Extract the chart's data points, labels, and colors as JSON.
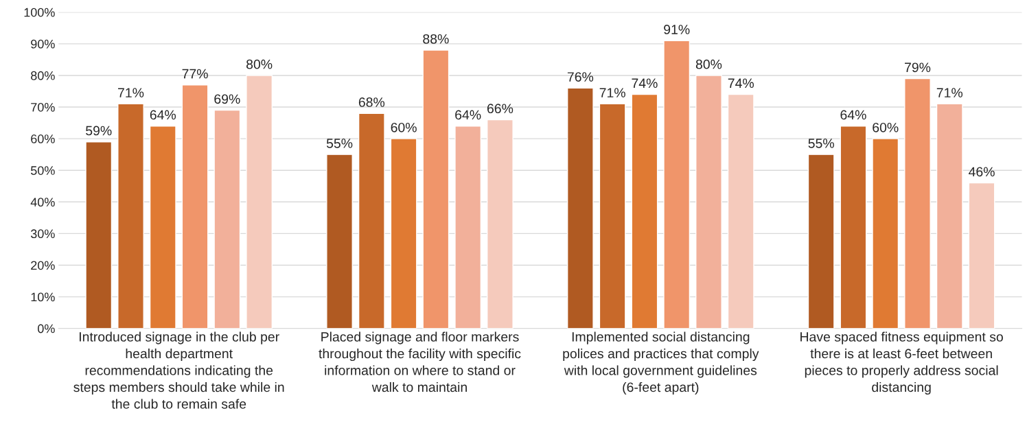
{
  "chart_data": {
    "type": "bar",
    "categories": [
      "Introduced signage in the club per\nhealth department\nrecommendations indicating the\nsteps members should take while in\nthe club to remain safe",
      "Placed signage and floor markers\nthroughout the facility with specific\ninformation on where to stand or\nwalk to maintain",
      "Implemented social distancing\npolices and practices that comply\nwith local government guidelines\n(6-feet apart)",
      "Have spaced fitness equipment so\nthere is at least 6-feet between\npieces to properly address social\ndistancing"
    ],
    "series": [
      {
        "color": "#b05a22",
        "values": [
          59,
          55,
          76,
          55
        ],
        "value_labels": [
          "59%",
          "55%",
          "76%",
          "55%"
        ]
      },
      {
        "color": "#c8692a",
        "values": [
          71,
          68,
          71,
          64
        ],
        "value_labels": [
          "71%",
          "68%",
          "71%",
          "64%"
        ]
      },
      {
        "color": "#e07a33",
        "values": [
          64,
          60,
          74,
          60
        ],
        "value_labels": [
          "64%",
          "60%",
          "74%",
          "60%"
        ]
      },
      {
        "color": "#f0956a",
        "values": [
          77,
          88,
          91,
          79
        ],
        "value_labels": [
          "77%",
          "88%",
          "91%",
          "79%"
        ]
      },
      {
        "color": "#f2b09a",
        "values": [
          69,
          64,
          80,
          71
        ],
        "value_labels": [
          "69%",
          "64%",
          "80%",
          "71%"
        ]
      },
      {
        "color": "#f5cabc",
        "values": [
          80,
          66,
          74,
          46
        ],
        "value_labels": [
          "80%",
          "66%",
          "74%",
          "46%"
        ]
      }
    ],
    "ylim": [
      0,
      100
    ],
    "yticks": [
      {
        "value": 0,
        "label": "0%"
      },
      {
        "value": 10,
        "label": "10%"
      },
      {
        "value": 20,
        "label": "20%"
      },
      {
        "value": 30,
        "label": "30%"
      },
      {
        "value": 40,
        "label": "40%"
      },
      {
        "value": 50,
        "label": "50%"
      },
      {
        "value": 60,
        "label": "60%"
      },
      {
        "value": 70,
        "label": "70%"
      },
      {
        "value": 80,
        "label": "80%"
      },
      {
        "value": 90,
        "label": "90%"
      },
      {
        "value": 100,
        "label": "100%"
      }
    ],
    "grid": "y"
  }
}
